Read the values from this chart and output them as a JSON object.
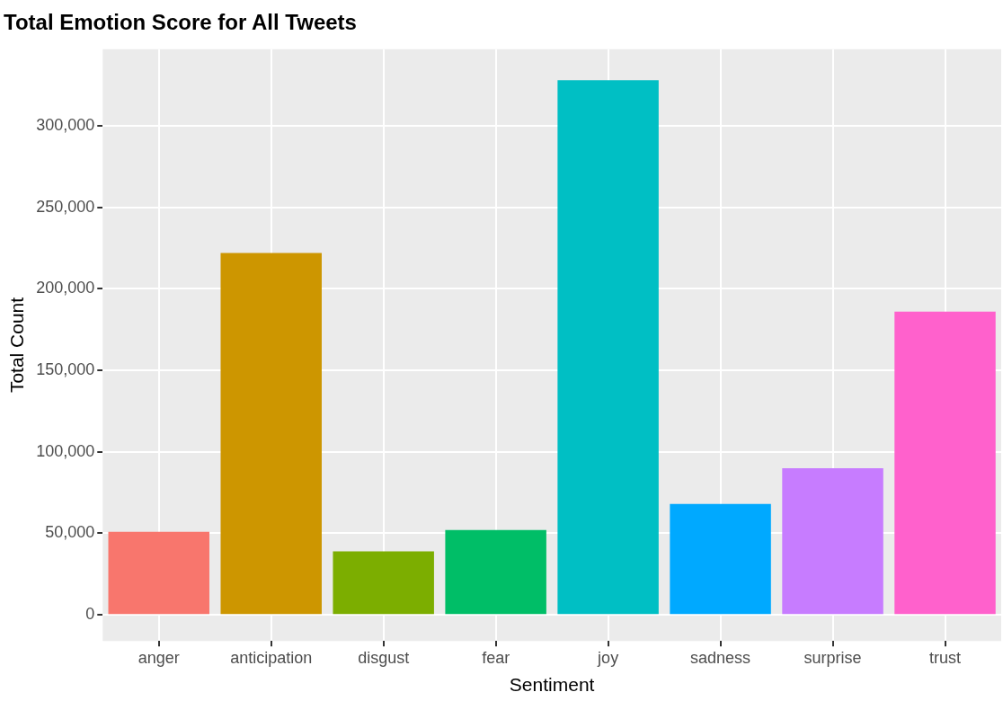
{
  "chart_data": {
    "type": "bar",
    "title": "Total Emotion Score for All Tweets",
    "xlabel": "Sentiment",
    "ylabel": "Total Count",
    "categories": [
      "anger",
      "anticipation",
      "disgust",
      "fear",
      "joy",
      "sadness",
      "surprise",
      "trust"
    ],
    "values": [
      51000,
      222000,
      39000,
      52000,
      328000,
      68000,
      90000,
      186000
    ],
    "colors": [
      "#f8766d",
      "#cd9600",
      "#7cae00",
      "#00be67",
      "#00bfc4",
      "#00a9ff",
      "#c77cff",
      "#ff61cc"
    ],
    "ylim": [
      -16000,
      347000
    ],
    "yticks": [
      {
        "value": 0,
        "label": "0"
      },
      {
        "value": 50000,
        "label": "50,000"
      },
      {
        "value": 100000,
        "label": "100,000"
      },
      {
        "value": 150000,
        "label": "150,000"
      },
      {
        "value": 200000,
        "label": "200,000"
      },
      {
        "value": 250000,
        "label": "250,000"
      },
      {
        "value": 300000,
        "label": "300,000"
      }
    ],
    "grid": true,
    "legend": false
  }
}
